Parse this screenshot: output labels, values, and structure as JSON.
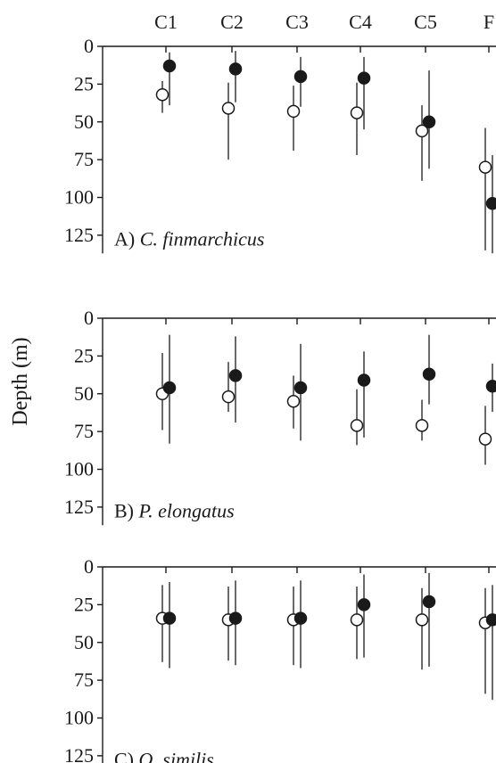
{
  "chart_data": {
    "type": "scatter",
    "ylabel": "Depth (m)",
    "categories": [
      "C1",
      "C2",
      "C3",
      "C4",
      "C5",
      "F"
    ],
    "ylim": [
      0,
      137
    ],
    "yticks": [
      "0",
      "25",
      "50",
      "75",
      "100",
      "125"
    ],
    "inverted_y": true,
    "colors": {
      "filled": "#1a1a1a",
      "open": "#ffffff",
      "stroke": "#1a1a1a"
    },
    "panels": [
      {
        "label_prefix": "A) ",
        "label_species": "C. finmarchicus",
        "series": [
          {
            "marker": "open",
            "values": [
              32,
              41,
              43,
              44,
              56,
              80
            ],
            "err_low": [
              23,
              24,
              26,
              24,
              39,
              54
            ],
            "err_high": [
              44,
              75,
              69,
              72,
              89,
              135
            ]
          },
          {
            "marker": "filled",
            "values": [
              13,
              15,
              20,
              21,
              50,
              104
            ],
            "err_low": [
              4,
              3,
              7,
              7,
              16,
              72
            ],
            "err_high": [
              39,
              37,
              40,
              55,
              81,
              138
            ]
          }
        ]
      },
      {
        "label_prefix": "B) ",
        "label_species": "P. elongatus",
        "series": [
          {
            "marker": "open",
            "values": [
              50,
              52,
              55,
              71,
              71,
              80
            ],
            "err_low": [
              23,
              29,
              38,
              47,
              54,
              58
            ],
            "err_high": [
              74,
              62,
              73,
              84,
              81,
              97
            ]
          },
          {
            "marker": "filled",
            "values": [
              46,
              38,
              46,
              41,
              37,
              45
            ],
            "err_low": [
              11,
              12,
              17,
              22,
              11,
              30
            ],
            "err_high": [
              83,
              69,
              81,
              79,
              57,
              62
            ]
          }
        ]
      },
      {
        "label_prefix": "C) ",
        "label_species": "O. similis",
        "series": [
          {
            "marker": "open",
            "values": [
              34,
              35,
              35,
              35,
              35,
              37
            ],
            "err_low": [
              12,
              13,
              13,
              13,
              14,
              14
            ],
            "err_high": [
              63,
              62,
              65,
              61,
              68,
              84
            ]
          },
          {
            "marker": "filled",
            "values": [
              34,
              34,
              34,
              25,
              23,
              35
            ],
            "err_low": [
              10,
              9,
              9,
              5,
              4,
              12
            ],
            "err_high": [
              67,
              65,
              67,
              60,
              66,
              88
            ]
          }
        ]
      }
    ]
  }
}
